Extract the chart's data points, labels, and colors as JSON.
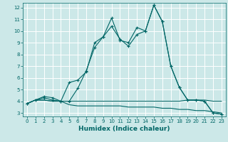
{
  "xlabel": "Humidex (Indice chaleur)",
  "bg_color": "#cce8e8",
  "grid_color": "#ffffff",
  "line_color": "#006666",
  "xlim": [
    -0.5,
    23.5
  ],
  "ylim": [
    2.7,
    12.4
  ],
  "yticks": [
    3,
    4,
    5,
    6,
    7,
    8,
    9,
    10,
    11,
    12
  ],
  "xticks": [
    0,
    1,
    2,
    3,
    4,
    5,
    6,
    7,
    8,
    9,
    10,
    11,
    12,
    13,
    14,
    15,
    16,
    17,
    18,
    19,
    20,
    21,
    22,
    23
  ],
  "line1_x": [
    0,
    1,
    2,
    3,
    4,
    5,
    6,
    7,
    8,
    9,
    10,
    11,
    12,
    13,
    14,
    15,
    16,
    17,
    18,
    19,
    20,
    21,
    22,
    23
  ],
  "line1_y": [
    3.8,
    4.1,
    4.4,
    4.3,
    4.0,
    5.6,
    5.8,
    6.5,
    9.0,
    9.5,
    11.1,
    9.2,
    9.0,
    10.3,
    10.0,
    12.2,
    10.8,
    7.0,
    5.2,
    4.1,
    4.1,
    4.0,
    3.0,
    2.9
  ],
  "line2_x": [
    0,
    1,
    2,
    3,
    4,
    5,
    6,
    7,
    8,
    9,
    10,
    11,
    12,
    13,
    14,
    15,
    16,
    17,
    18,
    19,
    20,
    21,
    22,
    23
  ],
  "line2_y": [
    3.8,
    4.1,
    4.3,
    4.1,
    4.0,
    4.0,
    5.1,
    6.6,
    8.6,
    9.5,
    10.4,
    9.3,
    8.7,
    9.7,
    10.0,
    12.2,
    10.8,
    7.0,
    5.2,
    4.1,
    4.1,
    4.0,
    3.0,
    2.9
  ],
  "line3_x": [
    0,
    1,
    2,
    3,
    4,
    5,
    6,
    7,
    8,
    9,
    10,
    11,
    12,
    13,
    14,
    15,
    16,
    17,
    18,
    19,
    20,
    21,
    22,
    23
  ],
  "line3_y": [
    3.8,
    4.1,
    4.1,
    4.0,
    4.0,
    4.0,
    4.0,
    4.0,
    4.0,
    4.0,
    4.0,
    4.0,
    4.0,
    4.0,
    4.0,
    4.0,
    4.0,
    4.0,
    4.0,
    4.1,
    4.1,
    4.1,
    4.0,
    4.0
  ],
  "line4_x": [
    0,
    1,
    2,
    3,
    4,
    5,
    6,
    7,
    8,
    9,
    10,
    11,
    12,
    13,
    14,
    15,
    16,
    17,
    18,
    19,
    20,
    21,
    22,
    23
  ],
  "line4_y": [
    3.8,
    4.1,
    4.1,
    4.0,
    4.0,
    3.7,
    3.6,
    3.6,
    3.6,
    3.6,
    3.6,
    3.6,
    3.5,
    3.5,
    3.5,
    3.5,
    3.4,
    3.4,
    3.3,
    3.3,
    3.2,
    3.2,
    3.1,
    3.0
  ]
}
